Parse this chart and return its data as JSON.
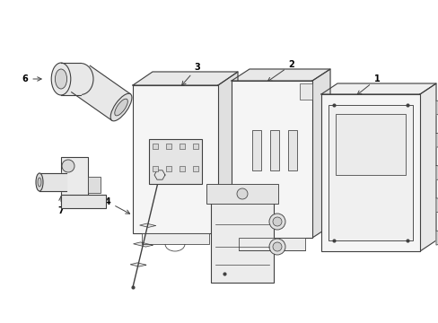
{
  "background_color": "#ffffff",
  "line_color": "#404040",
  "fig_width": 4.89,
  "fig_height": 3.6,
  "dpi": 100
}
